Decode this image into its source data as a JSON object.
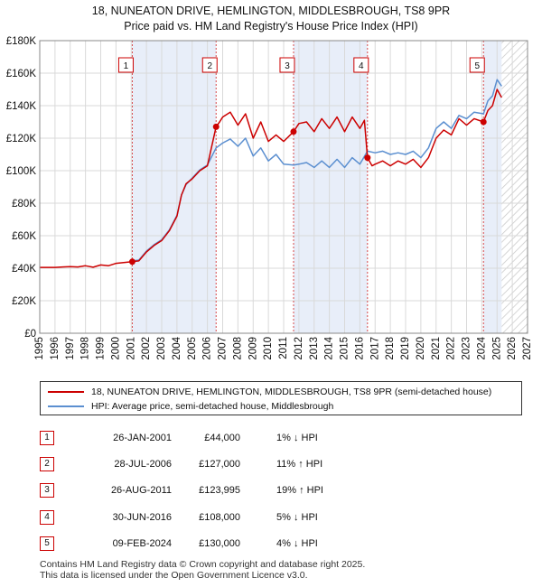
{
  "title": {
    "line1": "18, NUNEATON DRIVE, HEMLINGTON, MIDDLESBROUGH, TS8 9PR",
    "line2": "Price paid vs. HM Land Registry's House Price Index (HPI)"
  },
  "colors": {
    "price_line": "#cc0000",
    "hpi_line": "#5b8fd0",
    "shade": "#e8eef9",
    "grid": "#d9d9d9",
    "marker": "#cc0000"
  },
  "chart_data": {
    "type": "line",
    "title": "Price paid vs. HM Land Registry's House Price Index (HPI)",
    "xlabel": "",
    "ylabel": "",
    "xlim": [
      1995,
      2027
    ],
    "ylim": [
      0,
      180000
    ],
    "y_ticks": [
      0,
      20000,
      40000,
      60000,
      80000,
      100000,
      120000,
      140000,
      160000,
      180000
    ],
    "y_tick_labels": [
      "£0",
      "£20K",
      "£40K",
      "£60K",
      "£80K",
      "£100K",
      "£120K",
      "£140K",
      "£160K",
      "£180K"
    ],
    "x_ticks": [
      1995,
      1996,
      1997,
      1998,
      1999,
      2000,
      2001,
      2002,
      2003,
      2004,
      2005,
      2006,
      2007,
      2008,
      2009,
      2010,
      2011,
      2012,
      2013,
      2014,
      2015,
      2016,
      2017,
      2018,
      2019,
      2020,
      2021,
      2022,
      2023,
      2024,
      2025,
      2026,
      2027
    ],
    "x_tick_labels": [
      "1995",
      "1996",
      "1997",
      "1998",
      "1999",
      "2000",
      "2001",
      "2002",
      "2003",
      "2004",
      "2005",
      "2006",
      "2007",
      "2008",
      "2009",
      "2010",
      "2011",
      "2012",
      "2013",
      "2014",
      "2015",
      "2016",
      "2017",
      "2018",
      "2019",
      "2020",
      "2021",
      "2022",
      "2023",
      "2024",
      "2025",
      "2026",
      "2027"
    ],
    "shaded_ranges": [
      [
        2001.07,
        2006.57
      ],
      [
        2011.65,
        2016.5
      ],
      [
        2024.11,
        2025.3
      ]
    ],
    "hatched_from": 2025.3,
    "series": [
      {
        "name": "18, NUNEATON DRIVE, HEMLINGTON, MIDDLESBROUGH, TS8 9PR (semi-detached house)",
        "role": "price",
        "x": [
          1995.0,
          1995.5,
          1996.0,
          1996.5,
          1997.0,
          1997.5,
          1998.0,
          1998.5,
          1999.0,
          1999.5,
          2000.0,
          2000.5,
          2001.07,
          2001.5,
          2002.0,
          2002.5,
          2003.0,
          2003.5,
          2004.0,
          2004.3,
          2004.6,
          2005.0,
          2005.5,
          2006.0,
          2006.57,
          2006.8,
          2007.0,
          2007.5,
          2008.0,
          2008.5,
          2009.0,
          2009.5,
          2010.0,
          2010.5,
          2011.0,
          2011.65,
          2012.0,
          2012.5,
          2013.0,
          2013.5,
          2014.0,
          2014.5,
          2015.0,
          2015.5,
          2016.0,
          2016.3,
          2016.5,
          2016.8,
          2017.0,
          2017.5,
          2018.0,
          2018.5,
          2019.0,
          2019.5,
          2020.0,
          2020.5,
          2021.0,
          2021.5,
          2022.0,
          2022.5,
          2023.0,
          2023.5,
          2024.11,
          2024.4,
          2024.7,
          2025.0,
          2025.3
        ],
        "y": [
          40500,
          40500,
          40500,
          40800,
          41000,
          40800,
          41500,
          40600,
          42000,
          41500,
          43000,
          43500,
          44000,
          44500,
          50000,
          54000,
          57000,
          63000,
          72000,
          85000,
          92000,
          95000,
          100000,
          103000,
          127000,
          130000,
          133000,
          136000,
          128000,
          135000,
          120000,
          130000,
          118000,
          122000,
          118000,
          123995,
          129000,
          130000,
          124000,
          132000,
          126000,
          133000,
          124000,
          133000,
          126000,
          131000,
          108000,
          103000,
          104000,
          106000,
          103000,
          106000,
          104000,
          107000,
          102000,
          108000,
          120000,
          125000,
          122000,
          132000,
          128000,
          132000,
          130000,
          137000,
          140000,
          150000,
          145000
        ]
      },
      {
        "name": "HPI: Average price, semi-detached house, Middlesbrough",
        "role": "hpi",
        "x": [
          2001.07,
          2001.5,
          2002.0,
          2002.5,
          2003.0,
          2003.5,
          2004.0,
          2004.3,
          2004.6,
          2005.0,
          2005.5,
          2006.0,
          2006.57,
          2007.0,
          2007.5,
          2008.0,
          2008.5,
          2009.0,
          2009.5,
          2010.0,
          2010.5,
          2011.0,
          2011.65,
          2012.0,
          2012.5,
          2013.0,
          2013.5,
          2014.0,
          2014.5,
          2015.0,
          2015.5,
          2016.0,
          2016.5,
          2017.0,
          2017.5,
          2018.0,
          2018.5,
          2019.0,
          2019.5,
          2020.0,
          2020.5,
          2021.0,
          2021.5,
          2022.0,
          2022.5,
          2023.0,
          2023.5,
          2024.11,
          2024.4,
          2024.7,
          2025.0,
          2025.3
        ],
        "y": [
          44500,
          45000,
          50500,
          54500,
          57500,
          63500,
          72500,
          85000,
          91500,
          95500,
          100500,
          103500,
          114000,
          117000,
          119500,
          115000,
          120000,
          109000,
          114000,
          106000,
          110000,
          104000,
          103500,
          104000,
          105000,
          102000,
          106000,
          102000,
          107000,
          102000,
          108000,
          104000,
          112000,
          111000,
          112000,
          110000,
          111000,
          110000,
          112000,
          108000,
          114000,
          126000,
          130000,
          126000,
          134000,
          132000,
          136000,
          135000,
          143000,
          146000,
          156000,
          152000
        ]
      }
    ],
    "sales": [
      {
        "id": "1",
        "date": "26-JAN-2001",
        "x": 2001.07,
        "price": 44000
      },
      {
        "id": "2",
        "date": "28-JUL-2006",
        "x": 2006.57,
        "price": 127000
      },
      {
        "id": "3",
        "date": "26-AUG-2011",
        "x": 2011.65,
        "price": 123995
      },
      {
        "id": "4",
        "date": "30-JUN-2016",
        "x": 2016.5,
        "price": 108000
      },
      {
        "id": "5",
        "date": "09-FEB-2024",
        "x": 2024.11,
        "price": 130000
      }
    ]
  },
  "legend": {
    "price_label": "18, NUNEATON DRIVE, HEMLINGTON, MIDDLESBROUGH, TS8 9PR (semi-detached house)",
    "hpi_label": "HPI: Average price, semi-detached house, Middlesbrough"
  },
  "table": [
    {
      "id": "1",
      "date": "26-JAN-2001",
      "price": "£44,000",
      "hpi": "1% ↓ HPI"
    },
    {
      "id": "2",
      "date": "28-JUL-2006",
      "price": "£127,000",
      "hpi": "11% ↑ HPI"
    },
    {
      "id": "3",
      "date": "26-AUG-2011",
      "price": "£123,995",
      "hpi": "19% ↑ HPI"
    },
    {
      "id": "4",
      "date": "30-JUN-2016",
      "price": "£108,000",
      "hpi": "5% ↓ HPI"
    },
    {
      "id": "5",
      "date": "09-FEB-2024",
      "price": "£130,000",
      "hpi": "4% ↓ HPI"
    }
  ],
  "footer": {
    "line1": "Contains HM Land Registry data © Crown copyright and database right 2025.",
    "line2": "This data is licensed under the Open Government Licence v3.0."
  }
}
